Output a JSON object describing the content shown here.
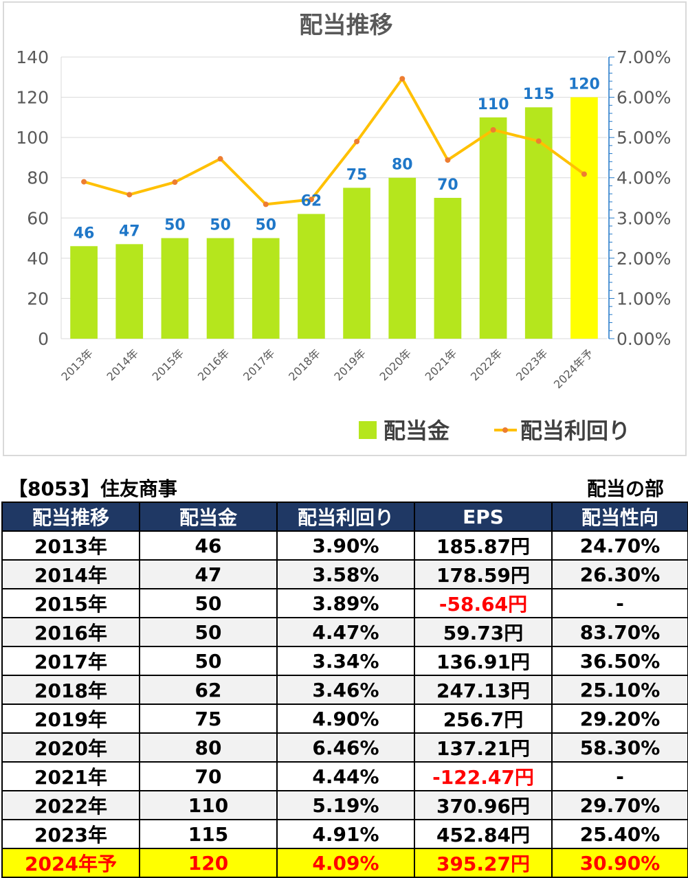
{
  "chart_data": {
    "type": "bar",
    "title": "配当推移",
    "categories": [
      "2013年",
      "2014年",
      "2015年",
      "2016年",
      "2017年",
      "2018年",
      "2019年",
      "2020年",
      "2021年",
      "2022年",
      "2023年",
      "2024年予"
    ],
    "series": [
      {
        "name": "配当金",
        "type": "bar",
        "axis": "left",
        "values": [
          46,
          47,
          50,
          50,
          50,
          62,
          75,
          80,
          70,
          110,
          115,
          120
        ],
        "color": "#b5e61d",
        "highlight_color": "#ffff00",
        "highlight_index": 11
      },
      {
        "name": "配当利回り",
        "type": "line",
        "axis": "right",
        "values": [
          3.9,
          3.58,
          3.89,
          4.47,
          3.34,
          3.46,
          4.9,
          6.46,
          4.44,
          5.19,
          4.91,
          4.09
        ],
        "color": "#ffc000",
        "marker_color": "#ed7d31"
      }
    ],
    "ylim": [
      0,
      140
    ],
    "yticks": [
      "0",
      "20",
      "40",
      "60",
      "80",
      "100",
      "120",
      "140"
    ],
    "y2lim": [
      0,
      7
    ],
    "y2ticks": [
      "0.00%",
      "1.00%",
      "2.00%",
      "3.00%",
      "4.00%",
      "5.00%",
      "6.00%",
      "7.00%"
    ],
    "grid": true,
    "legend": "bottom-right",
    "data_labels": [
      "46",
      "47",
      "50",
      "50",
      "50",
      "62",
      "75",
      "80",
      "70",
      "110",
      "115",
      "120"
    ]
  },
  "table": {
    "company": "【8053】住友商事",
    "section": "配当の部",
    "headers": [
      "配当推移",
      "配当金",
      "配当利回り",
      "EPS",
      "配当性向"
    ],
    "rows": [
      {
        "cells": [
          "2013年",
          "46",
          "3.90%",
          "185.87円",
          "24.70%"
        ],
        "eps_negative": false,
        "forecast": false
      },
      {
        "cells": [
          "2014年",
          "47",
          "3.58%",
          "178.59円",
          "26.30%"
        ],
        "eps_negative": false,
        "forecast": false
      },
      {
        "cells": [
          "2015年",
          "50",
          "3.89%",
          "-58.64円",
          "-"
        ],
        "eps_negative": true,
        "forecast": false
      },
      {
        "cells": [
          "2016年",
          "50",
          "4.47%",
          "59.73円",
          "83.70%"
        ],
        "eps_negative": false,
        "forecast": false
      },
      {
        "cells": [
          "2017年",
          "50",
          "3.34%",
          "136.91円",
          "36.50%"
        ],
        "eps_negative": false,
        "forecast": false
      },
      {
        "cells": [
          "2018年",
          "62",
          "3.46%",
          "247.13円",
          "25.10%"
        ],
        "eps_negative": false,
        "forecast": false
      },
      {
        "cells": [
          "2019年",
          "75",
          "4.90%",
          "256.7円",
          "29.20%"
        ],
        "eps_negative": false,
        "forecast": false
      },
      {
        "cells": [
          "2020年",
          "80",
          "6.46%",
          "137.21円",
          "58.30%"
        ],
        "eps_negative": false,
        "forecast": false
      },
      {
        "cells": [
          "2021年",
          "70",
          "4.44%",
          "-122.47円",
          "-"
        ],
        "eps_negative": true,
        "forecast": false
      },
      {
        "cells": [
          "2022年",
          "110",
          "5.19%",
          "370.96円",
          "29.70%"
        ],
        "eps_negative": false,
        "forecast": false
      },
      {
        "cells": [
          "2023年",
          "115",
          "4.91%",
          "452.84円",
          "25.40%"
        ],
        "eps_negative": false,
        "forecast": false
      },
      {
        "cells": [
          "2024年予",
          "120",
          "4.09%",
          "395.27円",
          "30.90%"
        ],
        "eps_negative": false,
        "forecast": true
      }
    ]
  }
}
